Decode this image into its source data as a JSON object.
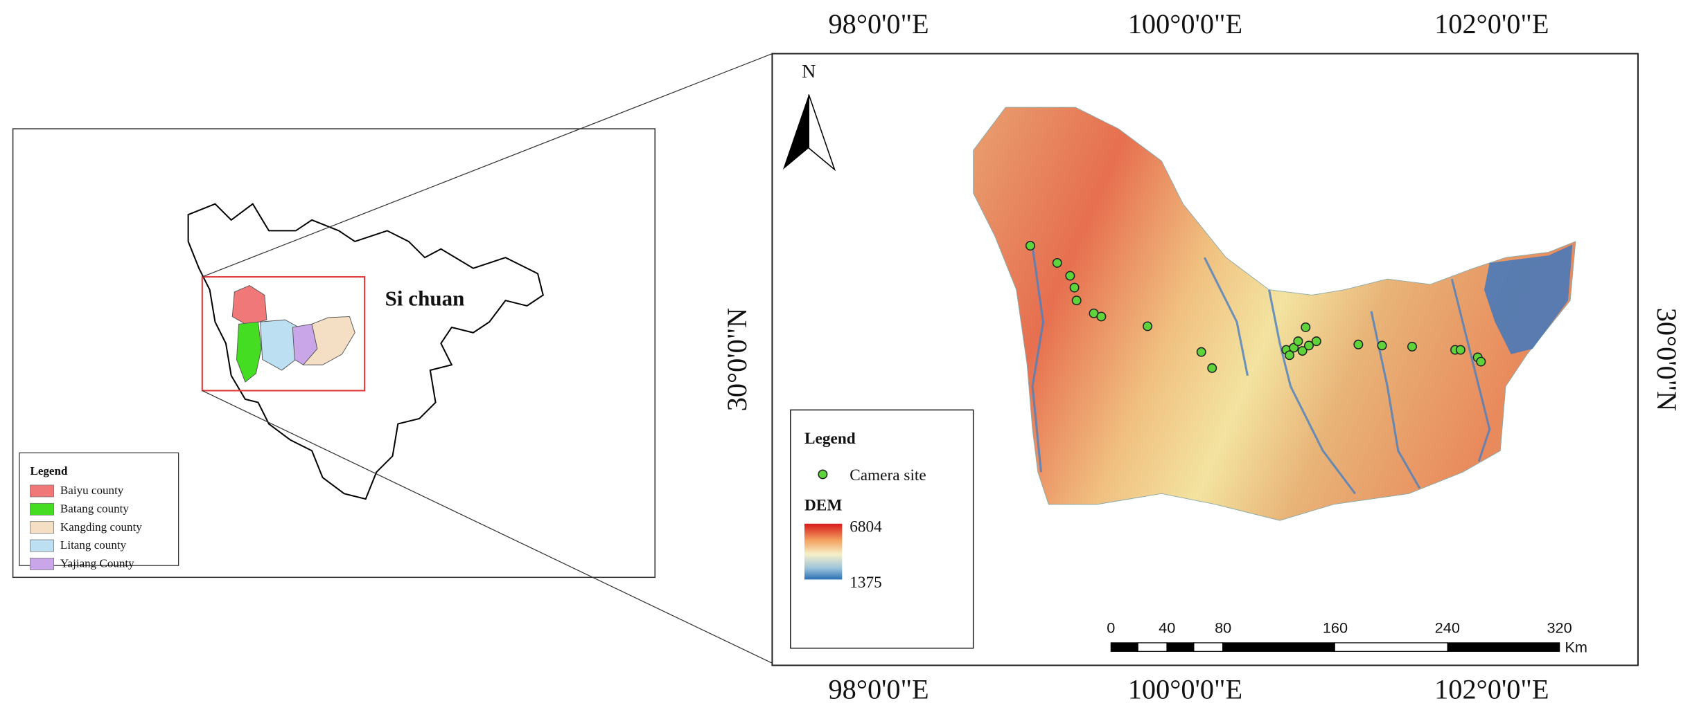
{
  "inset": {
    "region_label": "Si chuan",
    "legend_title": "Legend",
    "legend_items": [
      "Baiyu county",
      "Batang county",
      "Kangding county",
      "Litang county",
      "Yajiang County"
    ]
  },
  "main_map": {
    "top_labels": [
      "98°0'0\"E",
      "100°0'0\"E",
      "102°0'0\"E"
    ],
    "bottom_labels": [
      "98°0'0\"E",
      "100°0'0\"E",
      "102°0'0\"E"
    ],
    "left_label": "30°0'0\"N",
    "right_label": "30°0'0\"N",
    "north": "N",
    "legend": {
      "title": "Legend",
      "camera": "Camera site",
      "dem_title": "DEM",
      "dem_high": 6804,
      "dem_low": 1375
    },
    "scale_bar": {
      "labels": [
        0,
        40,
        80,
        160,
        240,
        320
      ],
      "unit": "Km"
    }
  }
}
